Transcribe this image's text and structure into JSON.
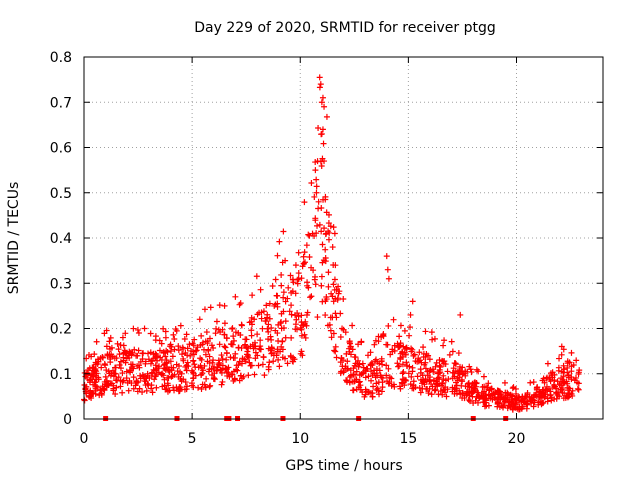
{
  "chart_data": {
    "type": "scatter",
    "title": "Day 229 of 2020, SRMTID for receiver ptgg",
    "xlabel": "GPS time / hours",
    "ylabel": "SRMTID / TECUs",
    "xlim": [
      0,
      24
    ],
    "ylim": [
      0,
      0.8
    ],
    "xticks": [
      0,
      5,
      10,
      15,
      20
    ],
    "xtick_labels": [
      "0",
      "5",
      "10",
      "15",
      "20"
    ],
    "yticks": [
      0,
      0.1,
      0.2,
      0.3,
      0.4,
      0.5,
      0.6,
      0.7,
      0.8
    ],
    "ytick_labels": [
      "0",
      "0.1",
      "0.2",
      "0.3",
      "0.4",
      "0.5",
      "0.6",
      "0.7",
      "0.8"
    ],
    "grid": true,
    "marker": "+",
    "color": "#ff0000",
    "envelope": [
      [
        0.0,
        0.07
      ],
      [
        0.5,
        0.09
      ],
      [
        1.0,
        0.1
      ],
      [
        1.5,
        0.1
      ],
      [
        2.0,
        0.11
      ],
      [
        2.5,
        0.11
      ],
      [
        3.0,
        0.1
      ],
      [
        3.5,
        0.1
      ],
      [
        4.0,
        0.11
      ],
      [
        4.5,
        0.11
      ],
      [
        5.0,
        0.12
      ],
      [
        5.5,
        0.12
      ],
      [
        6.0,
        0.13
      ],
      [
        6.5,
        0.14
      ],
      [
        7.0,
        0.14
      ],
      [
        7.5,
        0.15
      ],
      [
        8.0,
        0.16
      ],
      [
        8.5,
        0.18
      ],
      [
        9.0,
        0.2
      ],
      [
        9.5,
        0.22
      ],
      [
        10.0,
        0.24
      ],
      [
        10.5,
        0.3
      ],
      [
        10.8,
        0.4
      ],
      [
        11.0,
        0.45
      ],
      [
        11.3,
        0.35
      ],
      [
        11.6,
        0.25
      ],
      [
        12.0,
        0.15
      ],
      [
        12.5,
        0.1
      ],
      [
        13.0,
        0.08
      ],
      [
        13.5,
        0.09
      ],
      [
        14.0,
        0.12
      ],
      [
        14.5,
        0.12
      ],
      [
        15.0,
        0.11
      ],
      [
        15.5,
        0.1
      ],
      [
        16.0,
        0.1
      ],
      [
        16.5,
        0.09
      ],
      [
        17.0,
        0.09
      ],
      [
        17.5,
        0.08
      ],
      [
        18.0,
        0.06
      ],
      [
        18.5,
        0.05
      ],
      [
        19.0,
        0.045
      ],
      [
        19.5,
        0.04
      ],
      [
        20.0,
        0.035
      ],
      [
        20.5,
        0.04
      ],
      [
        21.0,
        0.05
      ],
      [
        21.5,
        0.07
      ],
      [
        22.0,
        0.08
      ],
      [
        22.5,
        0.085
      ],
      [
        22.9,
        0.08
      ]
    ],
    "highlights": [
      [
        10.9,
        0.755
      ],
      [
        10.95,
        0.74
      ],
      [
        11.05,
        0.71
      ],
      [
        11.0,
        0.7
      ],
      [
        11.1,
        0.69
      ],
      [
        11.05,
        0.64
      ],
      [
        11.0,
        0.63
      ],
      [
        10.8,
        0.57
      ],
      [
        11.1,
        0.57
      ],
      [
        10.7,
        0.55
      ],
      [
        10.75,
        0.5
      ],
      [
        10.85,
        0.48
      ],
      [
        11.2,
        0.41
      ],
      [
        11.6,
        0.41
      ],
      [
        11.5,
        0.38
      ],
      [
        14.0,
        0.36
      ],
      [
        14.05,
        0.33
      ],
      [
        14.1,
        0.31
      ],
      [
        15.2,
        0.26
      ],
      [
        15.1,
        0.23
      ],
      [
        17.4,
        0.23
      ],
      [
        9.3,
        0.35
      ],
      [
        9.8,
        0.34
      ],
      [
        7.0,
        0.27
      ],
      [
        6.5,
        0.25
      ],
      [
        2.8,
        0.2
      ],
      [
        1.8,
        0.18
      ]
    ],
    "data_gaps_hours": [
      1.0,
      4.3,
      6.6,
      6.7,
      7.1,
      9.2,
      12.7,
      18.0,
      19.5
    ],
    "sample_count": 1500
  }
}
